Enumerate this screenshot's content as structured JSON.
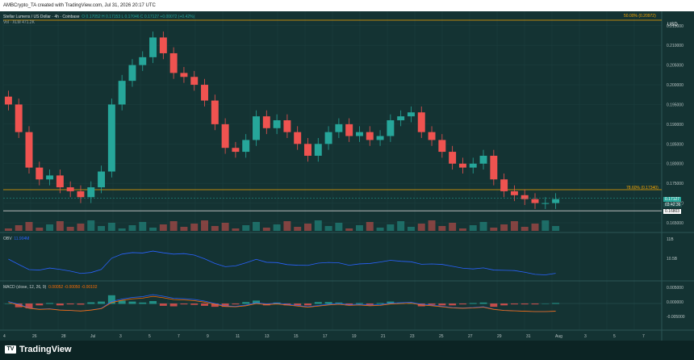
{
  "header": {
    "credit": "AMBCrypto_TA created with TradingView.com, Jul 31, 2026 20:17 UTC"
  },
  "main_pane": {
    "symbol": "Stellar Lumens / US Dollar · 4h · Coinbase",
    "ohlc": "O 0.17052  H 0.17153  L 0.17046  C 0.17127  +0.00072 (+0.42%)",
    "vol_label": "Vol · XLM  471.2K",
    "currency": "USD",
    "fib_618": "50.00% (0.20972)",
    "fib_786": "78.60% (0.17340)",
    "current_price": "0.17127",
    "countdown": "03:42:36",
    "support_price": "0.16803",
    "price_ticks": [
      "0.215000",
      "0.210000",
      "0.205000",
      "0.200000",
      "0.195000",
      "0.190000",
      "0.185000",
      "0.180000",
      "0.175000",
      "0.170000",
      "0.165000"
    ]
  },
  "obv_pane": {
    "label": "OBV",
    "value": "11.904M",
    "ticks": [
      "11B",
      "10.5B"
    ]
  },
  "macd_pane": {
    "label": "MACD (close, 12, 26, 9)",
    "values": "0.00052  -0.00050  -0.00102",
    "ticks": [
      "0.005000",
      "0.000000",
      "-0.005000"
    ]
  },
  "x_axis": {
    "labels": [
      "4",
      "26",
      "28",
      "Jul",
      "3",
      "5",
      "7",
      "9",
      "11",
      "13",
      "15",
      "17",
      "19",
      "21",
      "23",
      "25",
      "27",
      "29",
      "31",
      "Aug",
      "3",
      "5",
      "7"
    ]
  },
  "footer": {
    "brand": "TradingView"
  },
  "colors": {
    "bull": "#26a69a",
    "bear": "#ef5350",
    "obv_line": "#2962ff",
    "macd_line": "#2962ff",
    "signal_line": "#ff6d00",
    "fib_line": "#f7a600",
    "support_line": "#d0d0d0"
  },
  "chart_data": {
    "type": "candlestick",
    "series": [
      {
        "name": "XLM/USD",
        "close": [
          0.195,
          0.188,
          0.179,
          0.176,
          0.177,
          0.174,
          0.173,
          0.1715,
          0.174,
          0.178,
          0.195,
          0.201,
          0.205,
          0.207,
          0.212,
          0.208,
          0.203,
          0.202,
          0.2,
          0.196,
          0.19,
          0.184,
          0.183,
          0.186,
          0.192,
          0.189,
          0.191,
          0.188,
          0.185,
          0.182,
          0.185,
          0.188,
          0.19,
          0.187,
          0.188,
          0.186,
          0.187,
          0.191,
          0.192,
          0.193,
          0.188,
          0.186,
          0.183,
          0.18,
          0.179,
          0.18,
          0.182,
          0.176,
          0.173,
          0.172,
          0.171,
          0.17,
          0.17,
          0.171
        ]
      }
    ],
    "ylim": [
      0.165,
      0.217
    ]
  }
}
